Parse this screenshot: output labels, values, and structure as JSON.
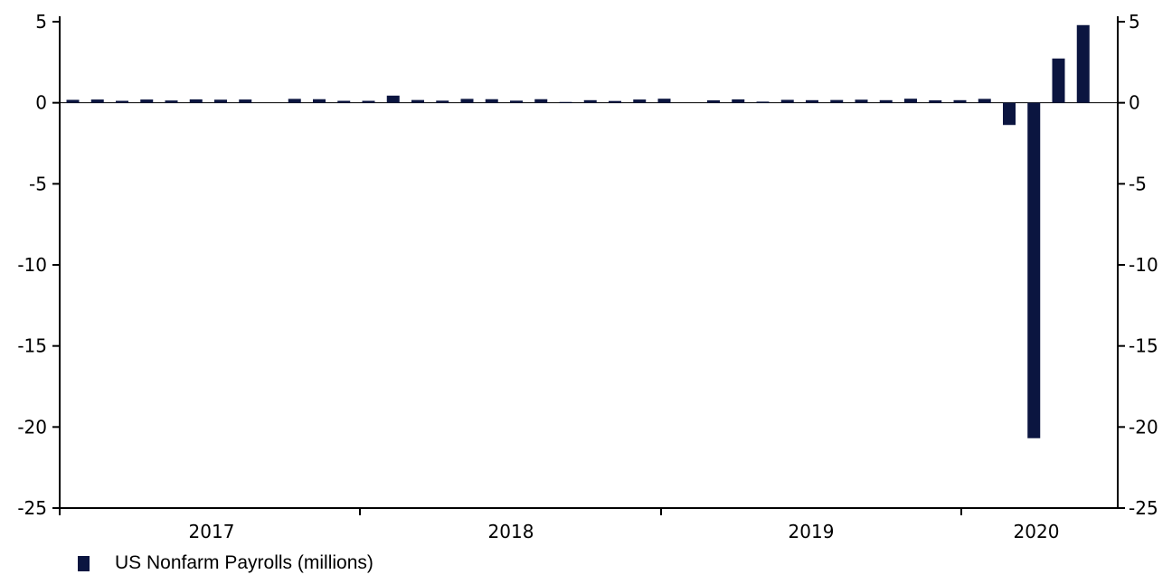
{
  "chart_data": {
    "type": "bar",
    "title": "",
    "xlabel": "",
    "ylabel": "",
    "ylim": [
      -25,
      5
    ],
    "yticks": [
      5,
      0,
      -5,
      -10,
      -15,
      -20,
      -25
    ],
    "secondary_axis": true,
    "grid": false,
    "legend_position": "bottom-left",
    "bar_color": "#0b1540",
    "year_labels": [
      "2017",
      "2018",
      "2019",
      "2020"
    ],
    "categories": [
      "2017-01",
      "2017-02",
      "2017-03",
      "2017-04",
      "2017-05",
      "2017-06",
      "2017-07",
      "2017-08",
      "2017-09",
      "2017-10",
      "2017-11",
      "2017-12",
      "2018-01",
      "2018-02",
      "2018-03",
      "2018-04",
      "2018-05",
      "2018-06",
      "2018-07",
      "2018-08",
      "2018-09",
      "2018-10",
      "2018-11",
      "2018-12",
      "2019-01",
      "2019-02",
      "2019-03",
      "2019-04",
      "2019-05",
      "2019-06",
      "2019-07",
      "2019-08",
      "2019-09",
      "2019-10",
      "2019-11",
      "2019-12",
      "2020-01",
      "2020-02",
      "2020-03",
      "2020-04",
      "2020-05",
      "2020-06"
    ],
    "series": [
      {
        "name": "US Nonfarm Payrolls (millions)",
        "values": [
          0.18,
          0.2,
          0.12,
          0.2,
          0.14,
          0.21,
          0.19,
          0.2,
          0.0,
          0.24,
          0.22,
          0.12,
          0.12,
          0.44,
          0.17,
          0.13,
          0.24,
          0.22,
          0.13,
          0.22,
          0.05,
          0.16,
          0.11,
          0.2,
          0.25,
          0.0,
          0.15,
          0.21,
          0.07,
          0.18,
          0.16,
          0.17,
          0.19,
          0.16,
          0.25,
          0.15,
          0.16,
          0.24,
          -1.37,
          -20.69,
          2.73,
          4.79
        ]
      }
    ]
  }
}
